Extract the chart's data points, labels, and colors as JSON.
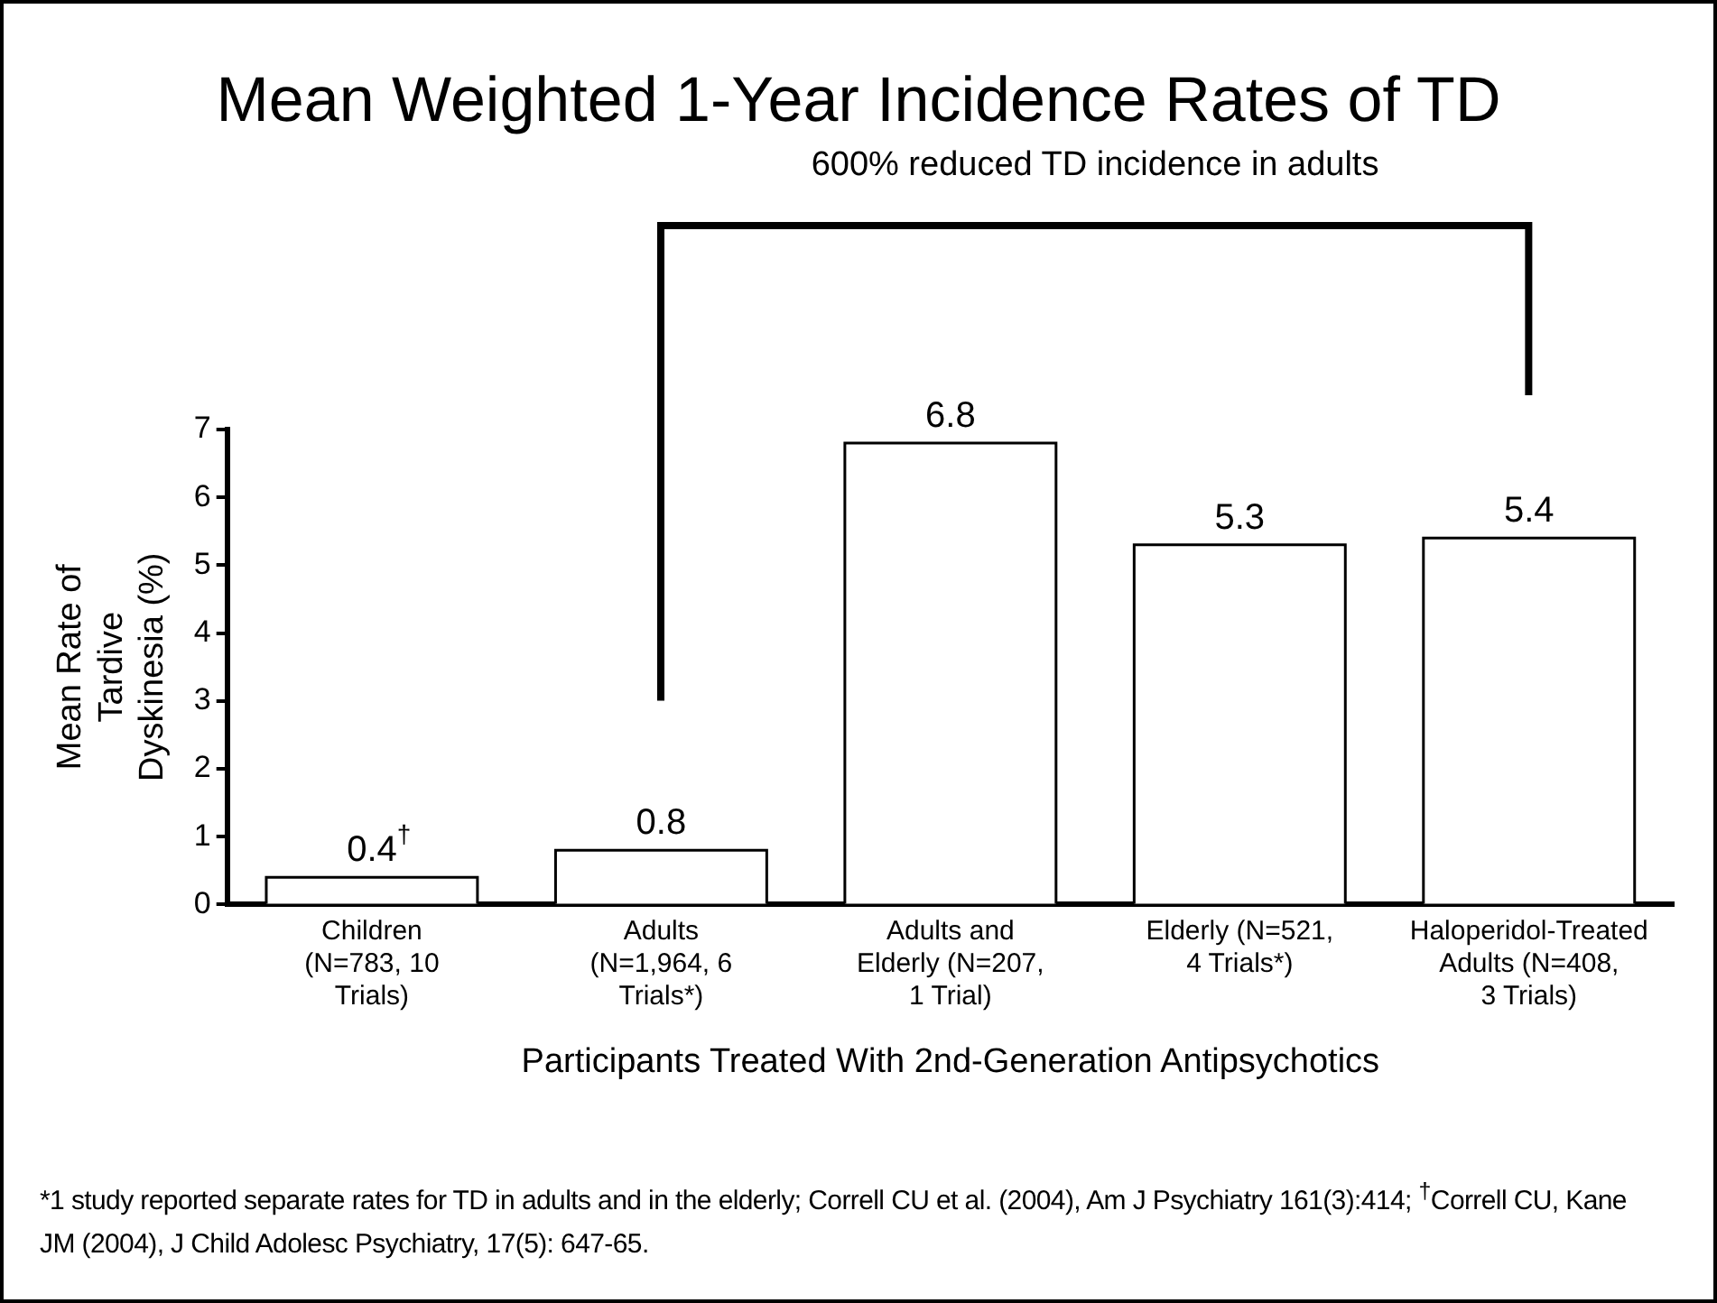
{
  "chart_data": {
    "type": "bar",
    "title": "Mean Weighted 1-Year Incidence Rates of TD",
    "xlabel": "Participants Treated With 2nd-Generation Antipsychotics",
    "ylabel": "Mean Rate of Tardive Dyskinesia (%)",
    "categories": [
      "Children (N=783, 10 Trials)",
      "Adults (N=1,964, 6 Trials*)",
      "Adults and Elderly (N=207, 1 Trial)",
      "Elderly (N=521, 4 Trials*)",
      "Haloperidol-Treated Adults (N=408, 3 Trials)"
    ],
    "values": [
      0.4,
      0.8,
      6.8,
      5.3,
      5.4
    ],
    "value_labels": [
      "0.4$^{†}$",
      "0.8",
      "6.8",
      "5.3",
      "5.4"
    ],
    "color": "#ffffff",
    "ylim": [
      0,
      7
    ],
    "yticks": [
      0,
      1,
      2,
      3,
      4,
      5,
      6,
      7
    ],
    "grid": false,
    "legend": false,
    "annotations": [
      "600% reduced TD incidence in adults",
      "*1 study reported separate rates for TD in adults and in the elderly; Correll CU et al. (2004), Am J Psychiatry 161(3):414; $^{†}$Correll CU, Kane JM (2004), J Child Adolesc Psychiatry, 17(5): 647-65."
    ]
  }
}
